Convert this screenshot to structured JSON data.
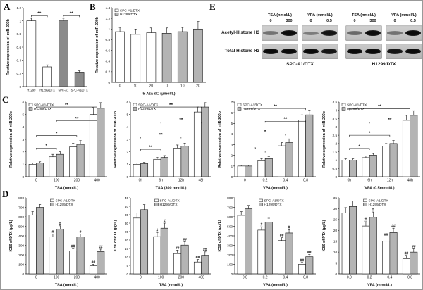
{
  "panel_labels": {
    "A": "A",
    "B": "B",
    "C": "C",
    "D": "D",
    "E": "E"
  },
  "colors": {
    "series_spc": "#ffffff",
    "series_h1299": "#b4b4b4",
    "dark_bar": "#8a8a8a",
    "axis": "#111111"
  },
  "legend_labels": {
    "spc": "SPC-A1/DTX",
    "h1299": "H1299/DTX"
  },
  "chart_data": [
    {
      "id": "A",
      "type": "bar",
      "ylabel": "Relative expression of miR-200b",
      "ylim": [
        0,
        1.2
      ],
      "yticks": [
        0,
        0.2,
        0.4,
        0.6,
        0.8,
        1.0,
        1.2
      ],
      "categories": [
        "H1299",
        "H1299/DTX",
        "SPC-A1",
        "SPC-A1/DTX"
      ],
      "cat_font": 4.1,
      "series": [
        {
          "name": "",
          "values": [
            1.0,
            0.3,
            1.0,
            0.22
          ],
          "errors": [
            0.04,
            0.03,
            0.04,
            0.02
          ],
          "colors": [
            "#ffffff",
            "#ffffff",
            "#8a8a8a",
            "#8a8a8a"
          ]
        }
      ],
      "brackets": [
        {
          "x1": 0,
          "x2": 1,
          "y": 1.08,
          "label": "**"
        },
        {
          "x1": 2,
          "x2": 3,
          "y": 1.08,
          "label": "**"
        }
      ]
    },
    {
      "id": "B",
      "type": "bar",
      "ylabel": "Relative expression of miR-200b",
      "xlabel": "5-Aza-dC (μmol/L)",
      "ylim": [
        0,
        1.4
      ],
      "yticks": [
        0,
        0.2,
        0.4,
        0.6,
        0.8,
        1.0,
        1.2,
        1.4
      ],
      "categories": [
        "0",
        "10",
        "20",
        "0",
        "10",
        "20"
      ],
      "series": [
        {
          "name": "",
          "values": [
            0.95,
            0.9,
            0.93,
            0.92,
            0.95,
            1.0
          ],
          "errors": [
            0.08,
            0.1,
            0.09,
            0.1,
            0.08,
            0.14
          ],
          "colors": [
            "#ffffff",
            "#ffffff",
            "#ffffff",
            "#b4b4b4",
            "#b4b4b4",
            "#b4b4b4"
          ]
        }
      ],
      "legend": [
        {
          "label": "SPC-A1/DTX",
          "color": "#ffffff"
        },
        {
          "label": "H1299/DTX",
          "color": "#b4b4b4"
        }
      ],
      "legend_pos": "left"
    },
    {
      "id": "C1",
      "type": "bar",
      "ylabel": "Relative expression of miR-200b",
      "xlabel": "TSA (nmol/L)",
      "ylim": [
        0,
        6
      ],
      "yticks": [
        0,
        1,
        2,
        3,
        4,
        5,
        6
      ],
      "categories": [
        "0",
        "100",
        "200",
        "400"
      ],
      "series": [
        {
          "name": "SPC-A1/DTX",
          "color": "#ffffff",
          "values": [
            1.0,
            1.6,
            2.4,
            5.0
          ],
          "errors": [
            0.1,
            0.2,
            0.3,
            0.55
          ]
        },
        {
          "name": "H1299/DTX",
          "color": "#b4b4b4",
          "values": [
            1.1,
            1.8,
            2.6,
            5.5
          ],
          "errors": [
            0.1,
            0.2,
            0.3,
            0.45
          ]
        }
      ],
      "brackets": [
        {
          "x1": 0,
          "x2": 1,
          "y": 2.3,
          "label": "*"
        },
        {
          "x1": 0,
          "x2": 2,
          "y": 3.3,
          "label": "*"
        },
        {
          "x1": 1,
          "x2": 3,
          "y": 4.5,
          "label": "**"
        },
        {
          "x1": 0,
          "x2": 3,
          "y": 5.6,
          "label": "**"
        }
      ],
      "legend_pos": "left"
    },
    {
      "id": "C2",
      "type": "bar",
      "ylabel": "Relative expression of miR-200b",
      "xlabel": "TSA (300 nmol/L)",
      "ylim": [
        0,
        6
      ],
      "yticks": [
        0,
        1,
        2,
        3,
        4,
        5,
        6
      ],
      "categories": [
        "0h",
        "6h",
        "12h",
        "48h"
      ],
      "series": [
        {
          "name": "SPC-A1/DTX",
          "color": "#ffffff",
          "values": [
            1.0,
            1.4,
            2.3,
            5.2
          ],
          "errors": [
            0.1,
            0.15,
            0.25,
            0.4
          ]
        },
        {
          "name": "H1299/DTX",
          "color": "#b4b4b4",
          "values": [
            1.05,
            1.55,
            2.45,
            5.6
          ],
          "errors": [
            0.1,
            0.15,
            0.25,
            0.35
          ]
        }
      ],
      "brackets": [
        {
          "x1": 0,
          "x2": 1,
          "y": 2.2,
          "label": "**"
        },
        {
          "x1": 0,
          "x2": 2,
          "y": 3.2,
          "label": "**"
        },
        {
          "x1": 1,
          "x2": 3,
          "y": 4.4,
          "label": "**"
        },
        {
          "x1": 0,
          "x2": 3,
          "y": 5.6,
          "label": "**"
        }
      ],
      "legend_pos": "left"
    },
    {
      "id": "C3",
      "type": "bar",
      "ylabel": "Relative expression of miR-200b",
      "xlabel": "VPA (mmol/L)",
      "ylim": [
        0,
        7
      ],
      "yticks": [
        0,
        1,
        2,
        3,
        4,
        5,
        6,
        7
      ],
      "categories": [
        "0",
        "0.2",
        "0.4",
        "0.8"
      ],
      "series": [
        {
          "name": "SPC-A1/DTX",
          "color": "#ffffff",
          "values": [
            1.0,
            1.5,
            2.9,
            5.3
          ],
          "errors": [
            0.1,
            0.2,
            0.3,
            0.5
          ]
        },
        {
          "name": "H1299/DTX",
          "color": "#b4b4b4",
          "values": [
            1.0,
            1.7,
            3.2,
            5.8
          ],
          "errors": [
            0.1,
            0.2,
            0.35,
            0.45
          ]
        }
      ],
      "brackets": [
        {
          "x1": 0,
          "x2": 1,
          "y": 2.4,
          "label": "*"
        },
        {
          "x1": 0,
          "x2": 2,
          "y": 4.0,
          "label": "*"
        },
        {
          "x1": 1,
          "x2": 3,
          "y": 5.2,
          "label": "**"
        },
        {
          "x1": 0,
          "x2": 3,
          "y": 6.4,
          "label": "**"
        }
      ],
      "legend_pos": "left"
    },
    {
      "id": "C4",
      "type": "bar",
      "ylabel": "Relative expression of miR-200b",
      "xlabel": "VPA (0.5mmol/L)",
      "ylim": [
        0,
        4.5
      ],
      "yticks": [
        0,
        0.5,
        1,
        1.5,
        2,
        2.5,
        3,
        3.5,
        4,
        4.5
      ],
      "categories": [
        "0h",
        "6h",
        "12h",
        "48h"
      ],
      "series": [
        {
          "name": "SPC-A1/DTX",
          "color": "#ffffff",
          "values": [
            1.0,
            1.15,
            1.85,
            3.4
          ],
          "errors": [
            0.08,
            0.1,
            0.15,
            0.3
          ]
        },
        {
          "name": "H1299/DTX",
          "color": "#b4b4b4",
          "values": [
            1.0,
            1.3,
            2.0,
            3.7
          ],
          "errors": [
            0.08,
            0.1,
            0.18,
            0.28
          ]
        }
      ],
      "brackets": [
        {
          "x1": 0,
          "x2": 1,
          "y": 1.7,
          "label": "*"
        },
        {
          "x1": 0,
          "x2": 2,
          "y": 2.5,
          "label": "*"
        },
        {
          "x1": 1,
          "x2": 3,
          "y": 3.3,
          "label": "**"
        },
        {
          "x1": 0,
          "x2": 3,
          "y": 4.1,
          "label": "**"
        }
      ],
      "legend_pos": "left"
    },
    {
      "id": "D1",
      "type": "bar",
      "ylabel": "IC50 of DTX (μg/L)",
      "xlabel": "TSA (nmol/L)",
      "ylim": [
        0,
        800
      ],
      "yticks": [
        0,
        100,
        200,
        300,
        400,
        500,
        600,
        700,
        800
      ],
      "categories": [
        "0",
        "100",
        "200",
        "400"
      ],
      "series": [
        {
          "name": "SPC-A1/DTX",
          "color": "#ffffff",
          "values": [
            620,
            390,
            240,
            85
          ],
          "errors": [
            35,
            30,
            25,
            15
          ],
          "bar_labels": [
            "",
            "#",
            "##",
            "##"
          ]
        },
        {
          "name": "H1299/DTX",
          "color": "#b4b4b4",
          "values": [
            700,
            470,
            390,
            235
          ],
          "errors": [
            30,
            35,
            30,
            25
          ],
          "bar_labels": [
            "",
            "#",
            "#",
            "##"
          ]
        }
      ],
      "legend_pos": "center"
    },
    {
      "id": "D2",
      "type": "bar",
      "ylabel": "IC50 of PTX (μg/L)",
      "xlabel": "TSA (nmol/L)",
      "ylim": [
        0,
        45
      ],
      "yticks": [
        0,
        5,
        10,
        15,
        20,
        25,
        30,
        35,
        40,
        45
      ],
      "categories": [
        "0",
        "100",
        "200",
        "400"
      ],
      "series": [
        {
          "name": "SPC-A1/DTX",
          "color": "#ffffff",
          "values": [
            33,
            22,
            12,
            7
          ],
          "errors": [
            3,
            2.5,
            2,
            1.5
          ],
          "bar_labels": [
            "",
            "#",
            "##",
            "##"
          ]
        },
        {
          "name": "H1299/DTX",
          "color": "#b4b4b4",
          "values": [
            38,
            27,
            17,
            11
          ],
          "errors": [
            3,
            3,
            2,
            2
          ],
          "bar_labels": [
            "",
            "#",
            "##",
            "##"
          ]
        }
      ],
      "legend_pos": "center"
    },
    {
      "id": "D3",
      "type": "bar",
      "ylabel": "IC50 of DTX (μg/L)",
      "xlabel": "VPA (mmol/L)",
      "ylim": [
        0,
        800
      ],
      "yticks": [
        0,
        100,
        200,
        300,
        400,
        500,
        600,
        700,
        800
      ],
      "categories": [
        "0.0",
        "0.2",
        "0.4",
        "0.8"
      ],
      "series": [
        {
          "name": "SPC-A1/DTX",
          "color": "#ffffff",
          "values": [
            615,
            460,
            350,
            100
          ],
          "errors": [
            40,
            35,
            30,
            20
          ],
          "bar_labels": [
            "",
            "#",
            "##",
            "##"
          ]
        },
        {
          "name": "H1299/DTX",
          "color": "#b4b4b4",
          "values": [
            685,
            545,
            430,
            180
          ],
          "errors": [
            35,
            40,
            35,
            25
          ],
          "bar_labels": [
            "",
            "",
            "#",
            "##"
          ]
        }
      ],
      "legend_pos": "center"
    },
    {
      "id": "D4",
      "type": "bar",
      "ylabel": "IC50 of PTX (μg/L)",
      "xlabel": "VPA (mmol/L)",
      "ylim": [
        0,
        35
      ],
      "yticks": [
        0,
        5,
        10,
        15,
        20,
        25,
        30,
        35
      ],
      "categories": [
        "0.0",
        "0.2",
        "0.4",
        "0.8"
      ],
      "series": [
        {
          "name": "SPC-A1/DTX",
          "color": "#ffffff",
          "values": [
            28,
            22,
            15,
            7
          ],
          "errors": [
            2.5,
            2,
            2,
            1.5
          ],
          "bar_labels": [
            "",
            "#",
            "##",
            "##"
          ]
        },
        {
          "name": "H1299/DTX",
          "color": "#b4b4b4",
          "values": [
            31,
            26,
            19,
            10
          ],
          "errors": [
            2.5,
            2.5,
            2,
            1.5
          ],
          "bar_labels": [
            "",
            "#",
            "##",
            "##"
          ]
        }
      ],
      "legend_pos": "center"
    }
  ],
  "panels": {
    "E": {
      "row_labels": [
        "Acetyl-Histone H3",
        "Total Histone H3"
      ],
      "groups": [
        {
          "name": "SPC-A1/DTX",
          "blocks": [
            {
              "header": "TSA (nmol/L)",
              "doses": [
                "0",
                "300"
              ],
              "acetyl": [
                0.45,
                1.0
              ],
              "total": [
                1.0,
                1.0
              ]
            },
            {
              "header": "VPA (mmol/L)",
              "doses": [
                "0",
                "0.5"
              ],
              "acetyl": [
                0.4,
                0.95
              ],
              "total": [
                1.0,
                0.95
              ]
            }
          ]
        },
        {
          "name": "H1299/DTX",
          "blocks": [
            {
              "header": "TSA (nmol/L)",
              "doses": [
                "0",
                "300"
              ],
              "acetyl": [
                0.5,
                1.0
              ],
              "total": [
                1.0,
                1.0
              ]
            },
            {
              "header": "VPA (mmol/L)",
              "doses": [
                "0",
                "0.5"
              ],
              "acetyl": [
                0.45,
                1.0
              ],
              "total": [
                0.95,
                1.0
              ]
            }
          ]
        }
      ]
    }
  }
}
